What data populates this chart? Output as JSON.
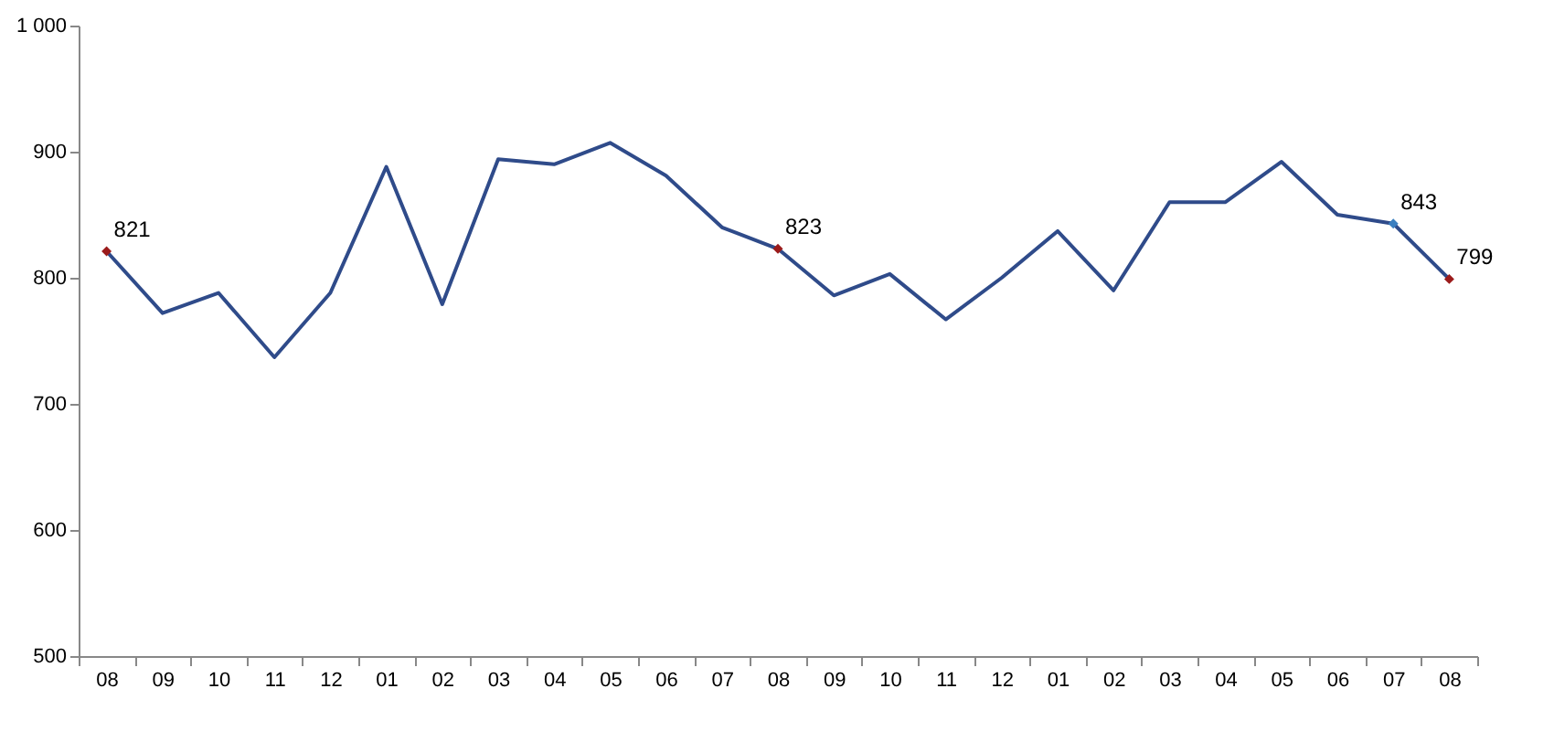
{
  "chart_data": {
    "type": "line",
    "categories": [
      "08",
      "09",
      "10",
      "11",
      "12",
      "01",
      "02",
      "03",
      "04",
      "05",
      "06",
      "07",
      "08",
      "09",
      "10",
      "11",
      "12",
      "01",
      "02",
      "03",
      "04",
      "05",
      "06",
      "07",
      "08"
    ],
    "series": [
      {
        "color": "#2f4b8a",
        "values": [
          821,
          772,
          788,
          737,
          788,
          888,
          779,
          894,
          890,
          907,
          881,
          840,
          823,
          786,
          803,
          767,
          800,
          837,
          790,
          860,
          860,
          892,
          850,
          843,
          799
        ]
      },
      {
        "type": "scatter",
        "marker": "diamond",
        "colors": [
          "#9b1b1b",
          null,
          null,
          null,
          null,
          null,
          null,
          null,
          null,
          null,
          null,
          null,
          "#9b1b1b",
          null,
          null,
          null,
          null,
          null,
          null,
          null,
          null,
          null,
          null,
          "#3a7fc0",
          "#9b1b1b"
        ],
        "values": [
          821,
          null,
          null,
          null,
          null,
          null,
          null,
          null,
          null,
          null,
          null,
          null,
          823,
          null,
          null,
          null,
          null,
          null,
          null,
          null,
          null,
          null,
          null,
          843,
          799
        ],
        "value_labels": [
          "821",
          null,
          null,
          null,
          null,
          null,
          null,
          null,
          null,
          null,
          null,
          null,
          "823",
          null,
          null,
          null,
          null,
          null,
          null,
          null,
          null,
          null,
          null,
          "843",
          "799"
        ]
      }
    ],
    "ylim": [
      500,
      1000
    ],
    "yticks": [
      500,
      600,
      700,
      800,
      900,
      {
        "value": 1000,
        "label": "1 000"
      }
    ],
    "grid": false
  }
}
